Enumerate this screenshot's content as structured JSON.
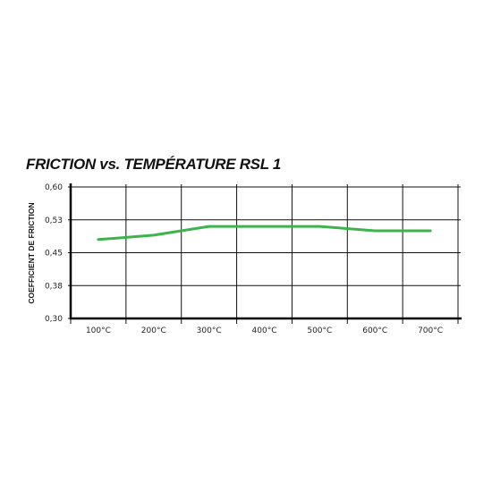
{
  "chart_data": {
    "type": "line",
    "title": "FRICTION vs. TEMPÉRATURE RSL 1",
    "xlabel": "",
    "ylabel": "COEFFICIENT DE FRICTION",
    "categories": [
      "100°C",
      "200°C",
      "300°C",
      "400°C",
      "500°C",
      "600°C",
      "700°C"
    ],
    "y_ticks": [
      "0,60",
      "0,53",
      "0,45",
      "0,38",
      "0,30"
    ],
    "y_tick_values": [
      0.6,
      0.525,
      0.45,
      0.375,
      0.3
    ],
    "ylim": [
      0.3,
      0.6
    ],
    "grid": true,
    "legend": "none",
    "series": [
      {
        "color": "#3cb44b",
        "values": [
          0.48,
          0.49,
          0.51,
          0.51,
          0.51,
          0.5,
          0.5
        ]
      }
    ]
  }
}
